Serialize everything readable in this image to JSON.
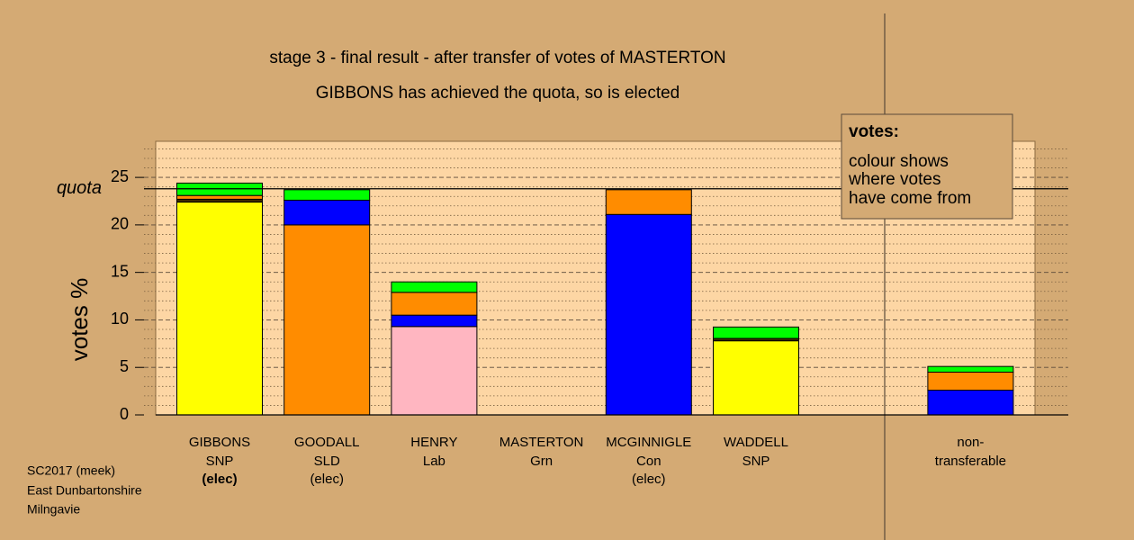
{
  "chart_data": {
    "type": "stacked_bar",
    "title": "stage 3 - final result - after transfer of votes of MASTERTON",
    "subtitle": "GIBBONS has achieved the quota, so is elected",
    "y_label": "votes %",
    "categories": [
      "GIBBONS",
      "GOODALL",
      "HENRY",
      "MASTERTON",
      "MCGINNIGLE",
      "WADDELL",
      null,
      "non-"
    ],
    "parties": [
      "SNP",
      "SLD",
      "Lab",
      "Grn",
      "Con",
      "SNP",
      null,
      "transferable"
    ],
    "status": [
      "(elec)",
      "(elec)",
      null,
      null,
      "(elec)",
      null,
      null,
      null
    ],
    "bold_status_index": 0,
    "series": [
      {
        "colors": [
          "#ffff00",
          "#ff8c00",
          "#ffb6c1",
          "#00ff00",
          "#0000ff",
          "#ffff00",
          null,
          "#0000ff"
        ],
        "values": [
          22.4,
          20.0,
          9.3,
          0,
          21.1,
          7.8,
          null,
          0
        ]
      },
      {
        "colors": [
          "#3b2a00",
          "#0000ff",
          "#0000ff",
          "#0000ff",
          "#ff8c00",
          "#3b2a00",
          null,
          "#0000ff"
        ],
        "values": [
          0.3,
          2.6,
          1.2,
          0,
          2.6,
          0.25,
          null,
          2.6
        ]
      },
      {
        "colors": [
          "#ff8c00",
          "#ff8c00",
          "#ff8c00",
          "#ff8c00",
          "#ff8c00",
          "#ff8c00",
          null,
          "#ff8c00"
        ],
        "values": [
          0.4,
          0,
          2.4,
          0,
          0,
          0,
          null,
          1.9
        ]
      },
      {
        "colors": [
          "#00ff00",
          "#00ff00",
          "#00ff00",
          "#00ff00",
          "#00ff00",
          "#00ff00",
          null,
          "#00ff00"
        ],
        "values": [
          1.3,
          1.1,
          1.1,
          0,
          0,
          1.2,
          null,
          0.6
        ]
      }
    ],
    "ylim": [
      0,
      28.8
    ],
    "yticks": [
      0,
      5,
      10,
      15,
      20,
      25
    ],
    "minor_yticks": [
      1,
      2,
      3,
      4,
      6,
      7,
      8,
      9,
      11,
      12,
      13,
      14,
      16,
      17,
      18,
      19,
      21,
      22,
      23,
      24,
      26,
      27,
      28
    ],
    "quota": {
      "value": 23.8,
      "label": "quota"
    },
    "grid": true,
    "note": {
      "heading": "votes:",
      "lines": [
        "colour shows",
        "where votes",
        "have come from"
      ]
    },
    "footer": [
      "SC2017 (meek)",
      "East Dunbartonshire",
      "Milngavie"
    ]
  }
}
